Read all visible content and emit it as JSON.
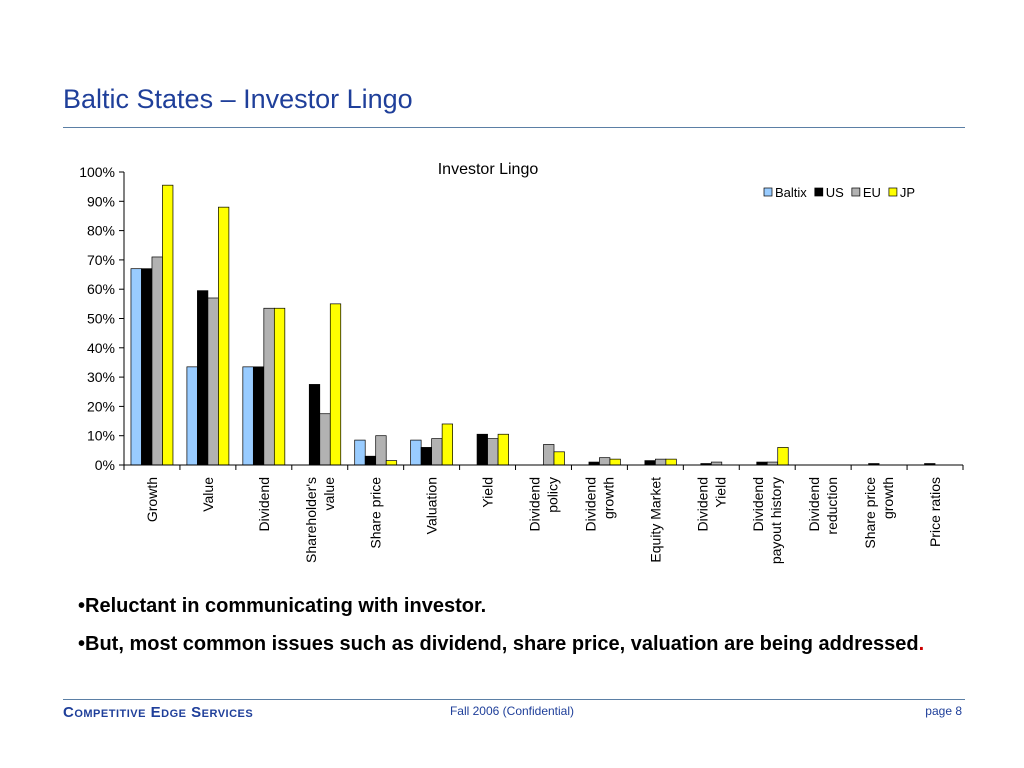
{
  "slide": {
    "title": "Baltic States – Investor Lingo"
  },
  "chart_data": {
    "type": "bar",
    "title": "Investor Lingo",
    "xlabel": "",
    "ylabel": "",
    "ylim": [
      0,
      100
    ],
    "yticks": [
      "0%",
      "10%",
      "20%",
      "30%",
      "40%",
      "50%",
      "60%",
      "70%",
      "80%",
      "90%",
      "100%"
    ],
    "legend_position": "top-right",
    "grid": false,
    "categories": [
      [
        "Growth"
      ],
      [
        "Value"
      ],
      [
        "Dividend"
      ],
      [
        "Shareholder's",
        "value"
      ],
      [
        "Share price"
      ],
      [
        "Valuation"
      ],
      [
        "Yield"
      ],
      [
        "Dividend",
        "policy"
      ],
      [
        "Dividend",
        "growth"
      ],
      [
        "Equity Market"
      ],
      [
        "Dividend",
        "Yield"
      ],
      [
        "Dividend",
        "payout history"
      ],
      [
        "Dividend",
        "reduction"
      ],
      [
        "Share price",
        "growth"
      ],
      [
        "Price ratios"
      ]
    ],
    "series": [
      {
        "name": "Baltix",
        "color": "#99ccff",
        "values": [
          67,
          33.5,
          33.5,
          0,
          8.5,
          8.5,
          0,
          0,
          0,
          0,
          0,
          0,
          0,
          0,
          0
        ]
      },
      {
        "name": "US",
        "color": "#000000",
        "values": [
          67,
          59.5,
          33.5,
          27.5,
          3,
          6,
          10.5,
          0,
          1,
          1.5,
          0.5,
          1,
          0,
          0.5,
          0.5
        ]
      },
      {
        "name": "EU",
        "color": "#b2b2b2",
        "values": [
          71,
          57,
          53.5,
          17.5,
          10,
          9,
          9,
          7,
          2.5,
          2,
          1,
          1,
          0,
          0,
          0
        ]
      },
      {
        "name": "JP",
        "color": "#ffff00",
        "values": [
          95.5,
          88,
          53.5,
          55,
          1.5,
          14,
          10.5,
          4.5,
          2,
          2,
          0,
          6,
          0,
          0,
          0
        ]
      }
    ]
  },
  "bullets": [
    {
      "marker": "•",
      "text": "Reluctant in communicating with investor.",
      "trail": ""
    },
    {
      "marker": "•",
      "text": "But, most common issues such as dividend, share price, valuation are being addressed",
      "trail": "."
    }
  ],
  "footer": {
    "company": "Competitive Edge Services",
    "center": "Fall 2006 (Confidential)",
    "page": "page 8"
  }
}
